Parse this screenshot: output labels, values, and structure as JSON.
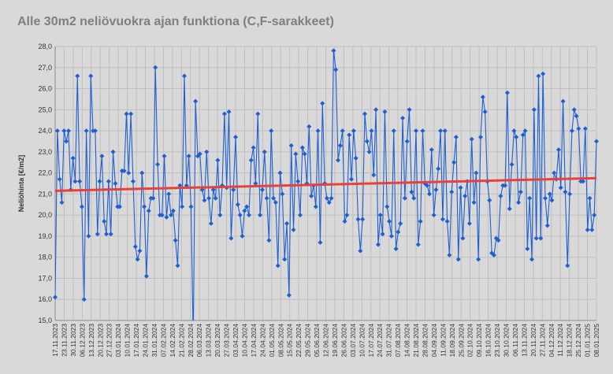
{
  "chart_data": {
    "type": "line",
    "title": "Alle 30m2 neliövuokra ajan funktiona (C,F-sarakkeet)",
    "xlabel": "",
    "ylabel": "Neliöhinta [€/m2]",
    "ylim": [
      15.0,
      28.0
    ],
    "y_ticks": [
      "15,0",
      "16,0",
      "17,0",
      "18,0",
      "19,0",
      "20,0",
      "21,0",
      "22,0",
      "23,0",
      "24,0",
      "25,0",
      "26,0",
      "27,0",
      "28,0"
    ],
    "x_range": [
      "17.11.2023",
      "08.01.2025"
    ],
    "x_ticks": [
      "17.11.2023",
      "23.11.2023",
      "30.11.2023",
      "06.12.2023",
      "13.12.2023",
      "20.12.2023",
      "27.12.2023",
      "03.01.2024",
      "10.01.2024",
      "17.01.2024",
      "24.01.2024",
      "31.01.2024",
      "07.02.2024",
      "14.02.2024",
      "21.02.2024",
      "28.02.2024",
      "06.03.2024",
      "13.03.2024",
      "20.03.2024",
      "27.03.2024",
      "03.04.2024",
      "10.04.2024",
      "17.04.2024",
      "24.04.2024",
      "01.05.2024",
      "08.05.2024",
      "15.05.2024",
      "22.05.2024",
      "29.05.2024",
      "05.06.2024",
      "12.06.2024",
      "19.06.2024",
      "26.06.2024",
      "03.07.2024",
      "10.07.2024",
      "17.07.2024",
      "24.07.2024",
      "31.07.2024",
      "07.08.2024",
      "14.08.2024",
      "21.08.2024",
      "28.08.2024",
      "04.09.2024",
      "11.09.2024",
      "18.09.2024",
      "25.09.2024",
      "02.10.2024",
      "09.10.2024",
      "16.10.2024",
      "23.10.2024",
      "30.10.2024",
      "06.11.2024",
      "13.11.2024",
      "20.11.2024",
      "27.11.2024",
      "04.12.2024",
      "11.12.2024",
      "18.12.2024",
      "25.12.2024",
      "01.01.2025",
      "08.01.2025"
    ],
    "grid": true,
    "legend": "none",
    "series": [
      {
        "color": "#1f5fd1",
        "marker": "diamond",
        "values": [
          16.1,
          24.0,
          21.7,
          20.6,
          24.0,
          23.5,
          24.0,
          21.2,
          22.7,
          21.6,
          26.6,
          21.6,
          20.4,
          16.0,
          24.0,
          19.0,
          26.6,
          24.0,
          24.0,
          19.1,
          21.6,
          22.8,
          19.7,
          19.1,
          21.6,
          19.1,
          23.0,
          21.5,
          20.4,
          20.4,
          22.1,
          22.1,
          24.8,
          22.0,
          24.8,
          21.6,
          18.5,
          17.9,
          18.3,
          22.0,
          20.4,
          17.1,
          20.2,
          20.8,
          20.8,
          27.0,
          22.4,
          20.0,
          20.0,
          22.8,
          19.9,
          21.0,
          20.0,
          20.2,
          18.8,
          17.6,
          21.4,
          20.4,
          26.6,
          21.4,
          22.8,
          20.4,
          14.0,
          25.4,
          22.8,
          22.9,
          21.2,
          20.7,
          23.0,
          20.8,
          19.6,
          21.2,
          20.8,
          22.6,
          20.0,
          21.4,
          24.8,
          21.3,
          24.9,
          18.9,
          21.2,
          23.7,
          20.5,
          20.0,
          19.0,
          20.2,
          20.4,
          20.0,
          22.6,
          23.2,
          21.5,
          24.8,
          20.0,
          21.2,
          23.0,
          20.8,
          18.8,
          24.0,
          20.8,
          20.6,
          17.6,
          22.0,
          21.0,
          17.9,
          19.6,
          16.2,
          23.3,
          19.3,
          22.9,
          21.6,
          20.0,
          23.2,
          22.9,
          21.5,
          24.2,
          20.9,
          21.4,
          20.4,
          24.0,
          18.7,
          25.3,
          21.5,
          20.8,
          20.6,
          20.8,
          27.8,
          26.9,
          22.6,
          23.3,
          24.0,
          19.7,
          20.0,
          23.8,
          21.7,
          24.0,
          22.7,
          19.8,
          18.3,
          19.8,
          24.8,
          23.5,
          23.0,
          24.0,
          21.9,
          25.0,
          18.6,
          20.0,
          19.1,
          24.9,
          20.4,
          19.7,
          19.0,
          24.0,
          18.4,
          19.2,
          19.6,
          24.6,
          20.8,
          23.5,
          25.0,
          21.1,
          20.8,
          24.0,
          18.6,
          19.7,
          24.0,
          21.5,
          21.4,
          21.0,
          23.1,
          20.0,
          21.2,
          22.2,
          24.0,
          19.8,
          24.0,
          19.7,
          18.1,
          21.1,
          22.5,
          23.7,
          17.9,
          21.3,
          18.9,
          20.9,
          21.6,
          19.6,
          23.6,
          20.6,
          22.0,
          17.9,
          23.7,
          25.6,
          24.9,
          21.6,
          20.7,
          18.2,
          18.1,
          18.9,
          18.8,
          20.9,
          21.4,
          21.4,
          25.8,
          20.3,
          22.4,
          24.0,
          23.7,
          20.6,
          21.1,
          23.8,
          24.0,
          18.4,
          20.8,
          17.9,
          25.0,
          18.9,
          26.6,
          18.9,
          26.7,
          20.8,
          19.5,
          21.0,
          20.7,
          22.0,
          21.7,
          23.1,
          21.3,
          25.4,
          21.1,
          17.6,
          21.0,
          24.0,
          25.0,
          24.7,
          24.1,
          21.6,
          21.6,
          24.1,
          19.3,
          20.8,
          19.3,
          20.0,
          23.5
        ],
        "trendline": {
          "color": "#e8403a",
          "start": 21.15,
          "end": 21.75
        }
      }
    ]
  }
}
